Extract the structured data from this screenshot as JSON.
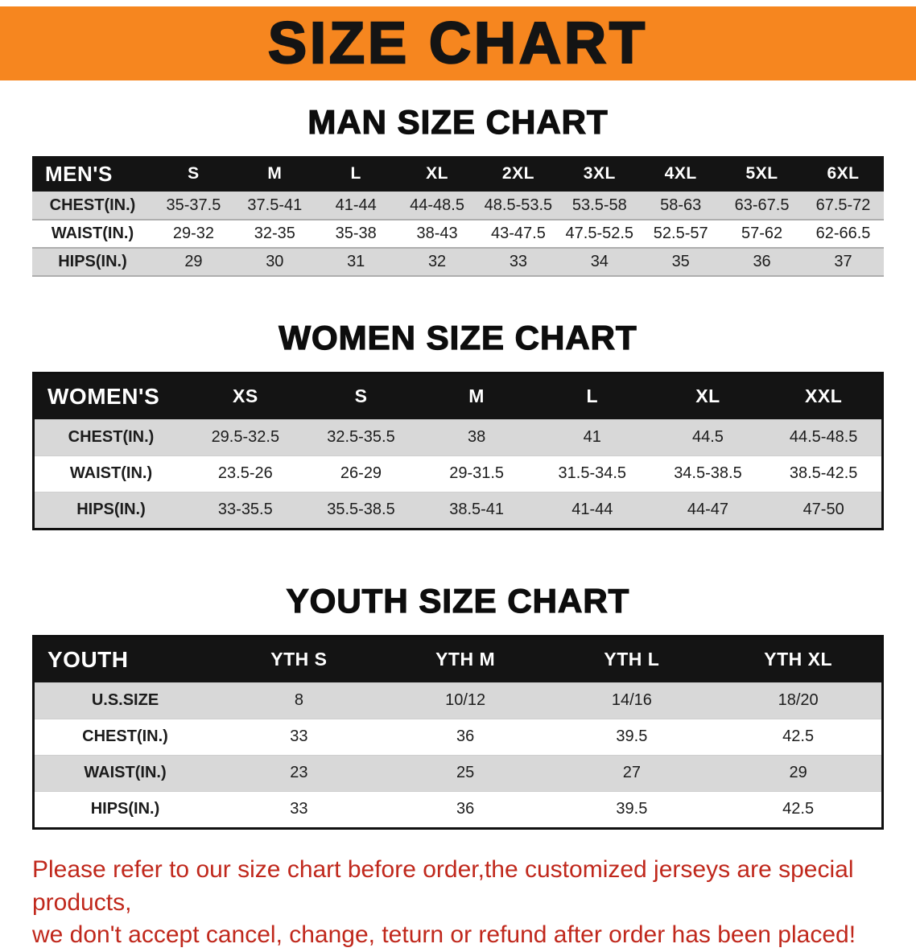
{
  "banner": {
    "title": "SIZE CHART"
  },
  "colors": {
    "banner_bg": "#f6861f",
    "header_bg": "#141414",
    "stripe": "#d8d8d8",
    "footer_red": "#c0281c"
  },
  "sections": [
    {
      "heading": "MAN SIZE CHART",
      "table": {
        "name": "mens",
        "header": [
          "MEN'S",
          "S",
          "M",
          "L",
          "XL",
          "2XL",
          "3XL",
          "4XL",
          "5XL",
          "6XL"
        ],
        "rows": [
          [
            "CHEST(IN.)",
            "35-37.5",
            "37.5-41",
            "41-44",
            "44-48.5",
            "48.5-53.5",
            "53.5-58",
            "58-63",
            "63-67.5",
            "67.5-72"
          ],
          [
            "WAIST(IN.)",
            "29-32",
            "32-35",
            "35-38",
            "38-43",
            "43-47.5",
            "47.5-52.5",
            "52.5-57",
            "57-62",
            "62-66.5"
          ],
          [
            "HIPS(IN.)",
            "29",
            "30",
            "31",
            "32",
            "33",
            "34",
            "35",
            "36",
            "37"
          ]
        ]
      }
    },
    {
      "heading": "WOMEN SIZE CHART",
      "table": {
        "name": "womens",
        "header": [
          "WOMEN'S",
          "XS",
          "S",
          "M",
          "L",
          "XL",
          "XXL"
        ],
        "rows": [
          [
            "CHEST(IN.)",
            "29.5-32.5",
            "32.5-35.5",
            "38",
            "41",
            "44.5",
            "44.5-48.5"
          ],
          [
            "WAIST(IN.)",
            "23.5-26",
            "26-29",
            "29-31.5",
            "31.5-34.5",
            "34.5-38.5",
            "38.5-42.5"
          ],
          [
            "HIPS(IN.)",
            "33-35.5",
            "35.5-38.5",
            "38.5-41",
            "41-44",
            "44-47",
            "47-50"
          ]
        ]
      }
    },
    {
      "heading": "YOUTH SIZE CHART",
      "table": {
        "name": "youth",
        "header": [
          "YOUTH",
          "YTH S",
          "YTH M",
          "YTH L",
          "YTH XL"
        ],
        "rows": [
          [
            "U.S.SIZE",
            "8",
            "10/12",
            "14/16",
            "18/20"
          ],
          [
            "CHEST(IN.)",
            "33",
            "36",
            "39.5",
            "42.5"
          ],
          [
            "WAIST(IN.)",
            "23",
            "25",
            "27",
            "29"
          ],
          [
            "HIPS(IN.)",
            "33",
            "36",
            "39.5",
            "42.5"
          ]
        ]
      }
    }
  ],
  "footer": {
    "line1": "Please refer to our size chart before order,the customized jerseys are special products,",
    "line2": "we don't accept cancel, change, teturn or refund after order has been placed!"
  }
}
